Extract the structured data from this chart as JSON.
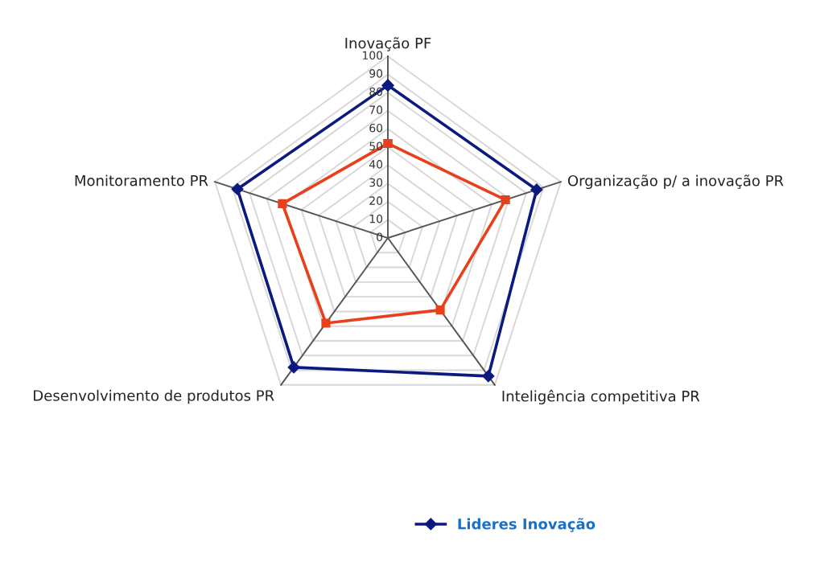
{
  "chart_data": {
    "type": "radar",
    "categories": [
      "Inovação PF",
      "Organização p/ a inovação PR",
      "Inteligência competitiva PR",
      "Desenvolvimento de produtos PR",
      "Monitoramento PR"
    ],
    "series": [
      {
        "color": "#e8401c",
        "marker": "square",
        "values": [
          52,
          68,
          49,
          58,
          61
        ]
      },
      {
        "name": "Lideres Inovação",
        "color": "#0a1a80",
        "marker": "diamond",
        "values": [
          84,
          86,
          94,
          88,
          87
        ]
      }
    ],
    "ylim": [
      0,
      100
    ],
    "yticks": [
      0,
      10,
      20,
      30,
      40,
      50,
      60,
      70,
      80,
      90,
      100
    ],
    "grid": true,
    "legend": "bottom"
  }
}
